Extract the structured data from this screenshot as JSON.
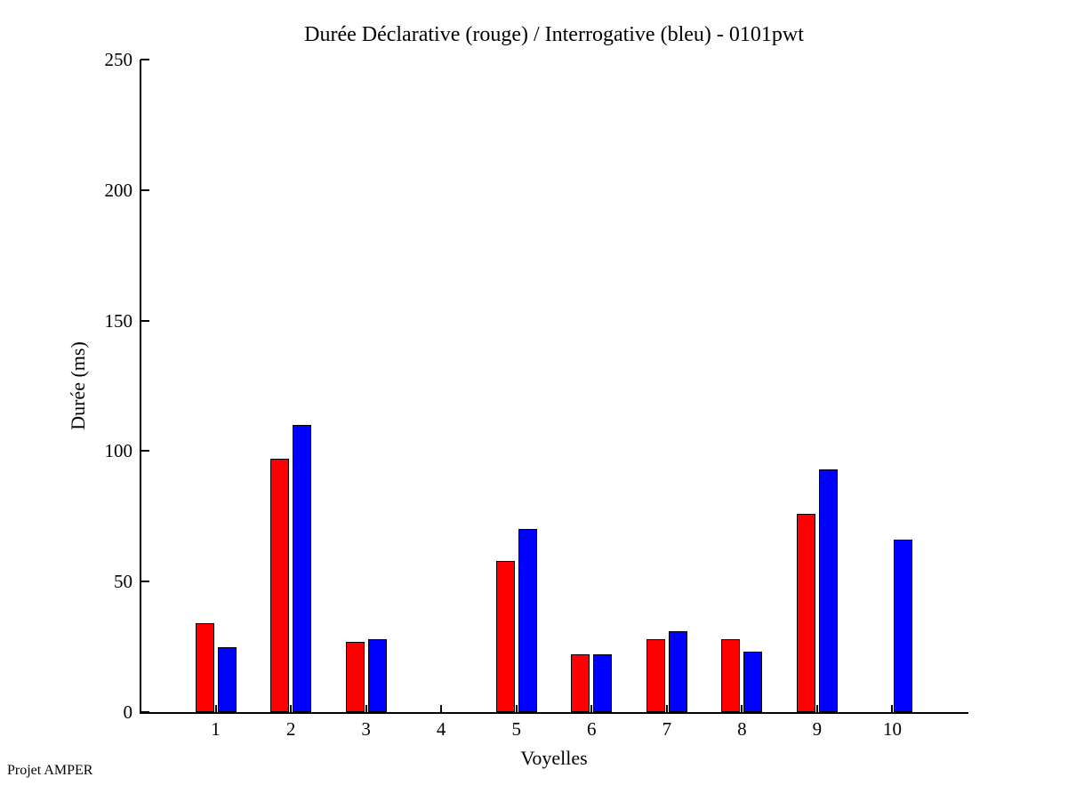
{
  "chart_data": {
    "type": "bar",
    "title": "Durée Déclarative (rouge) / Interrogative (bleu) - 0101pwt",
    "xlabel": "Voyelles",
    "ylabel": "Durée (ms)",
    "categories": [
      "1",
      "2",
      "3",
      "4",
      "5",
      "6",
      "7",
      "8",
      "9",
      "10"
    ],
    "series": [
      {
        "name": "Déclarative (rouge)",
        "color": "#ff0000",
        "values": [
          34,
          97,
          27,
          0,
          58,
          22,
          28,
          28,
          76,
          0
        ]
      },
      {
        "name": "Interrogative (bleu)",
        "color": "#0000ff",
        "values": [
          25,
          110,
          28,
          0,
          70,
          22,
          31,
          23,
          93,
          66
        ]
      }
    ],
    "ylim": [
      0,
      250
    ],
    "yticks": [
      0,
      50,
      100,
      150,
      200,
      250
    ],
    "xlim": [
      0,
      11
    ],
    "grid": false,
    "legend_position": "none",
    "annotation": "Projet AMPER"
  }
}
